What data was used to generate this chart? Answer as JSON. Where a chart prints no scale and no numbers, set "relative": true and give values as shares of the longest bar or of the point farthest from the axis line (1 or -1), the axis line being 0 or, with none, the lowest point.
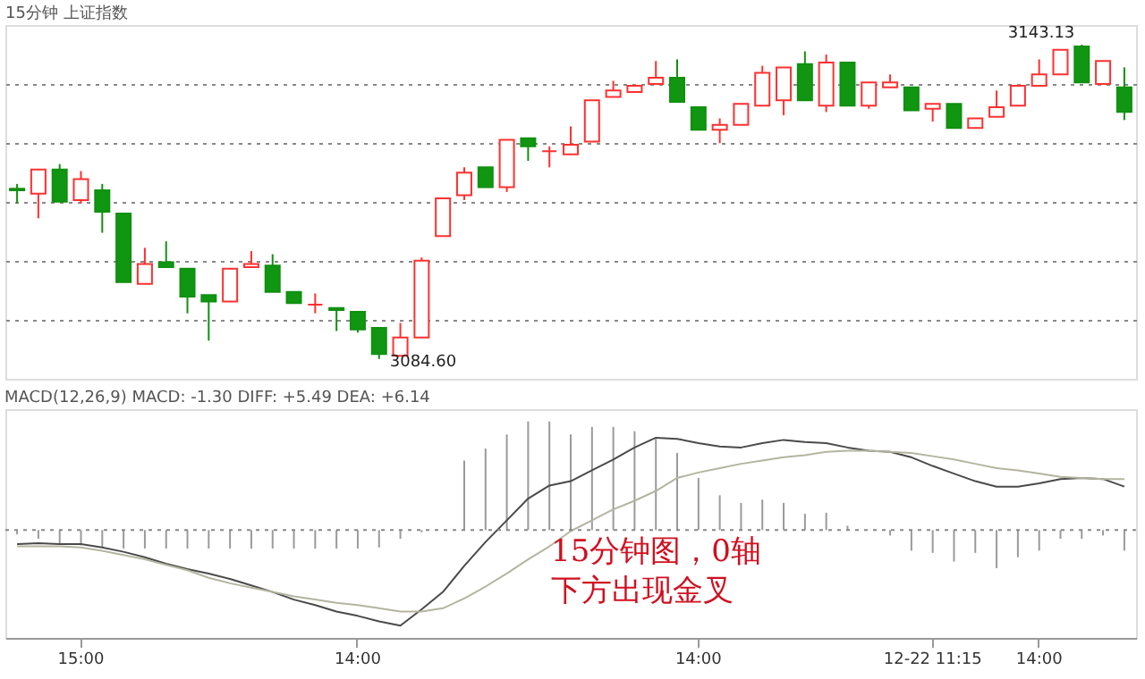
{
  "chart_data": [
    {
      "type": "candlestick",
      "title": "15分钟 上证指数",
      "tick_labels": false,
      "grid": "y",
      "categories": [
        null,
        null,
        null,
        null,
        null,
        null,
        null,
        null,
        null,
        null,
        null,
        null,
        null,
        null,
        null,
        null,
        null,
        null,
        null,
        null,
        null,
        null,
        null,
        null,
        null,
        null,
        null,
        null,
        null,
        null,
        null,
        null,
        null,
        null,
        null,
        null,
        null,
        null,
        null,
        null,
        null,
        null,
        null,
        null,
        null,
        null,
        null,
        null,
        null,
        null,
        null,
        null,
        null
      ],
      "ylim": [
        3080.9,
        3146.8
      ],
      "yticks": [
        {
          "value": 3091.9,
          "label": null
        },
        {
          "value": 3102.9,
          "label": null
        },
        {
          "value": 3113.9,
          "label": null
        },
        {
          "value": 3124.8,
          "label": null
        },
        {
          "value": 3135.8,
          "label": null
        }
      ],
      "ohlc": [
        [
          3116.3,
          3117.2,
          3113.6,
          3116.0
        ],
        [
          3115.4,
          3119.9,
          3110.8,
          3119.9
        ],
        [
          3119.9,
          3120.9,
          3113.9,
          3113.9
        ],
        [
          3114.2,
          3119.6,
          3113.6,
          3118.1
        ],
        [
          3116.0,
          3117.2,
          3108.1,
          3112.0
        ],
        [
          3111.7,
          3111.7,
          3098.9,
          3098.9
        ],
        [
          3098.6,
          3105.3,
          3098.6,
          3102.3
        ],
        [
          3102.6,
          3106.5,
          3101.7,
          3101.7
        ],
        [
          3101.4,
          3101.4,
          3093.1,
          3096.2
        ],
        [
          3096.5,
          3096.5,
          3088.0,
          3095.3
        ],
        [
          3095.3,
          3101.4,
          3095.3,
          3101.4
        ],
        [
          3101.7,
          3104.7,
          3101.7,
          3102.3
        ],
        [
          3102.0,
          3104.1,
          3097.1,
          3097.1
        ],
        [
          3097.1,
          3097.1,
          3095.0,
          3095.0
        ],
        [
          3094.7,
          3096.8,
          3093.1,
          3094.7
        ],
        [
          3094.1,
          3094.1,
          3089.8,
          3093.7
        ],
        [
          3093.4,
          3093.4,
          3089.5,
          3090.1
        ],
        [
          3090.4,
          3090.4,
          3084.6,
          3085.5
        ],
        [
          3085.2,
          3091.3,
          3085.2,
          3088.6
        ],
        [
          3088.6,
          3103.5,
          3088.6,
          3102.9
        ],
        [
          3107.5,
          3114.5,
          3107.5,
          3114.5
        ],
        [
          3115.1,
          3120.3,
          3114.2,
          3119.3
        ],
        [
          3120.3,
          3120.3,
          3116.6,
          3116.6
        ],
        [
          3116.6,
          3125.4,
          3115.7,
          3125.4
        ],
        [
          3125.7,
          3125.7,
          3121.5,
          3124.2
        ],
        [
          3123.3,
          3124.2,
          3120.3,
          3123.3
        ],
        [
          3122.7,
          3127.9,
          3122.7,
          3124.5
        ],
        [
          3125.1,
          3132.8,
          3125.1,
          3132.8
        ],
        [
          3133.4,
          3136.4,
          3133.4,
          3134.6
        ],
        [
          3134.3,
          3135.5,
          3134.3,
          3135.5
        ],
        [
          3135.8,
          3140.1,
          3135.8,
          3137.0
        ],
        [
          3137.0,
          3140.4,
          3132.5,
          3132.5
        ],
        [
          3131.5,
          3131.5,
          3127.3,
          3127.3
        ],
        [
          3127.3,
          3129.4,
          3124.8,
          3128.2
        ],
        [
          3128.2,
          3132.1,
          3128.2,
          3132.1
        ],
        [
          3131.8,
          3139.2,
          3131.8,
          3137.9
        ],
        [
          3132.8,
          3138.9,
          3130.0,
          3138.9
        ],
        [
          3139.5,
          3141.9,
          3132.8,
          3132.8
        ],
        [
          3131.8,
          3141.3,
          3130.6,
          3139.8
        ],
        [
          3139.8,
          3139.8,
          3131.8,
          3131.8
        ],
        [
          3131.8,
          3136.1,
          3131.2,
          3136.1
        ],
        [
          3135.2,
          3137.6,
          3135.2,
          3136.1
        ],
        [
          3135.2,
          3135.2,
          3130.9,
          3130.9
        ],
        [
          3131.2,
          3132.1,
          3128.8,
          3132.1
        ],
        [
          3132.1,
          3132.1,
          3127.6,
          3127.6
        ],
        [
          3127.6,
          3129.4,
          3127.6,
          3129.4
        ],
        [
          3129.7,
          3134.6,
          3129.7,
          3131.5
        ],
        [
          3131.8,
          3135.5,
          3131.8,
          3135.5
        ],
        [
          3135.5,
          3140.4,
          3135.5,
          3137.6
        ],
        [
          3137.6,
          3142.2,
          3137.6,
          3142.2
        ],
        [
          3142.8,
          3143.13,
          3136.1,
          3136.1
        ],
        [
          3135.8,
          3140.1,
          3135.8,
          3140.1
        ],
        [
          3135.2,
          3138.9,
          3129.1,
          3130.6
        ]
      ],
      "annotations": [
        "3143.13",
        "3084.60"
      ]
    },
    {
      "type": "bar",
      "relative": true,
      "title": "MACD(12,26,9)  MACD: -1.30  DIFF: +5.49  DEA: +6.14",
      "categories": [
        null,
        null,
        null,
        "15:00",
        null,
        null,
        null,
        null,
        null,
        null,
        null,
        null,
        null,
        null,
        null,
        null,
        "14:00",
        null,
        null,
        null,
        null,
        null,
        null,
        null,
        null,
        null,
        null,
        null,
        null,
        null,
        null,
        null,
        "14:00",
        null,
        null,
        null,
        null,
        null,
        null,
        null,
        null,
        null,
        null,
        "12-22 11:15",
        null,
        null,
        null,
        null,
        "14:00",
        null,
        null,
        null,
        null
      ],
      "series": [
        {
          "type": "bar",
          "color": "#9a9a9a",
          "values": [
            -0.04,
            -0.08,
            -0.12,
            -0.14,
            -0.16,
            -0.17,
            -0.17,
            -0.17,
            -0.17,
            -0.17,
            -0.17,
            -0.17,
            -0.17,
            -0.17,
            -0.17,
            -0.17,
            -0.17,
            -0.16,
            -0.08,
            -0.02,
            null,
            0.64,
            0.75,
            0.88,
            1,
            1,
            0.88,
            0.95,
            0.95,
            0.91,
            0.84,
            0.71,
            0.48,
            0.32,
            0.25,
            0.28,
            0.25,
            0.15,
            0.16,
            0.04,
            null,
            -0.05,
            -0.19,
            -0.21,
            -0.29,
            -0.21,
            -0.35,
            -0.25,
            -0.19,
            -0.08,
            -0.08,
            -0.05,
            -0.19
          ]
        },
        {
          "type": "line",
          "color": "#4a4a4a",
          "values": [
            -0.13,
            -0.12,
            -0.13,
            -0.13,
            -0.16,
            -0.2,
            -0.25,
            -0.31,
            -0.36,
            -0.4,
            -0.45,
            -0.51,
            -0.57,
            -0.64,
            -0.69,
            -0.75,
            -0.79,
            -0.84,
            -0.88,
            -0.73,
            -0.57,
            -0.33,
            -0.11,
            0.09,
            0.29,
            0.41,
            0.45,
            0.55,
            0.65,
            0.76,
            0.85,
            0.84,
            0.8,
            0.77,
            0.76,
            0.8,
            0.83,
            0.81,
            0.8,
            0.76,
            0.73,
            0.72,
            0.67,
            0.59,
            0.52,
            0.45,
            0.4,
            0.4,
            0.43,
            0.47,
            0.48,
            0.47,
            0.4
          ]
        },
        {
          "type": "line",
          "color": "#b4b4a0",
          "values": [
            -0.15,
            -0.15,
            -0.15,
            -0.16,
            -0.19,
            -0.23,
            -0.27,
            -0.32,
            -0.37,
            -0.44,
            -0.49,
            -0.53,
            -0.57,
            -0.61,
            -0.64,
            -0.67,
            -0.69,
            -0.72,
            -0.75,
            -0.75,
            -0.72,
            -0.63,
            -0.52,
            -0.4,
            -0.27,
            -0.15,
            -0.01,
            0.09,
            0.19,
            0.27,
            0.36,
            0.48,
            0.53,
            0.57,
            0.61,
            0.64,
            0.67,
            0.69,
            0.72,
            0.73,
            0.73,
            0.72,
            0.71,
            0.68,
            0.65,
            0.61,
            0.57,
            0.55,
            0.52,
            0.49,
            0.48,
            0.47,
            0.47
          ]
        }
      ],
      "ref_lines": [
        {
          "axis": "y",
          "value": 0,
          "color": "#888888",
          "line_style": "dotted"
        }
      ],
      "annotations": [
        "15分钟图，0轴",
        "下方出现金叉"
      ]
    }
  ]
}
